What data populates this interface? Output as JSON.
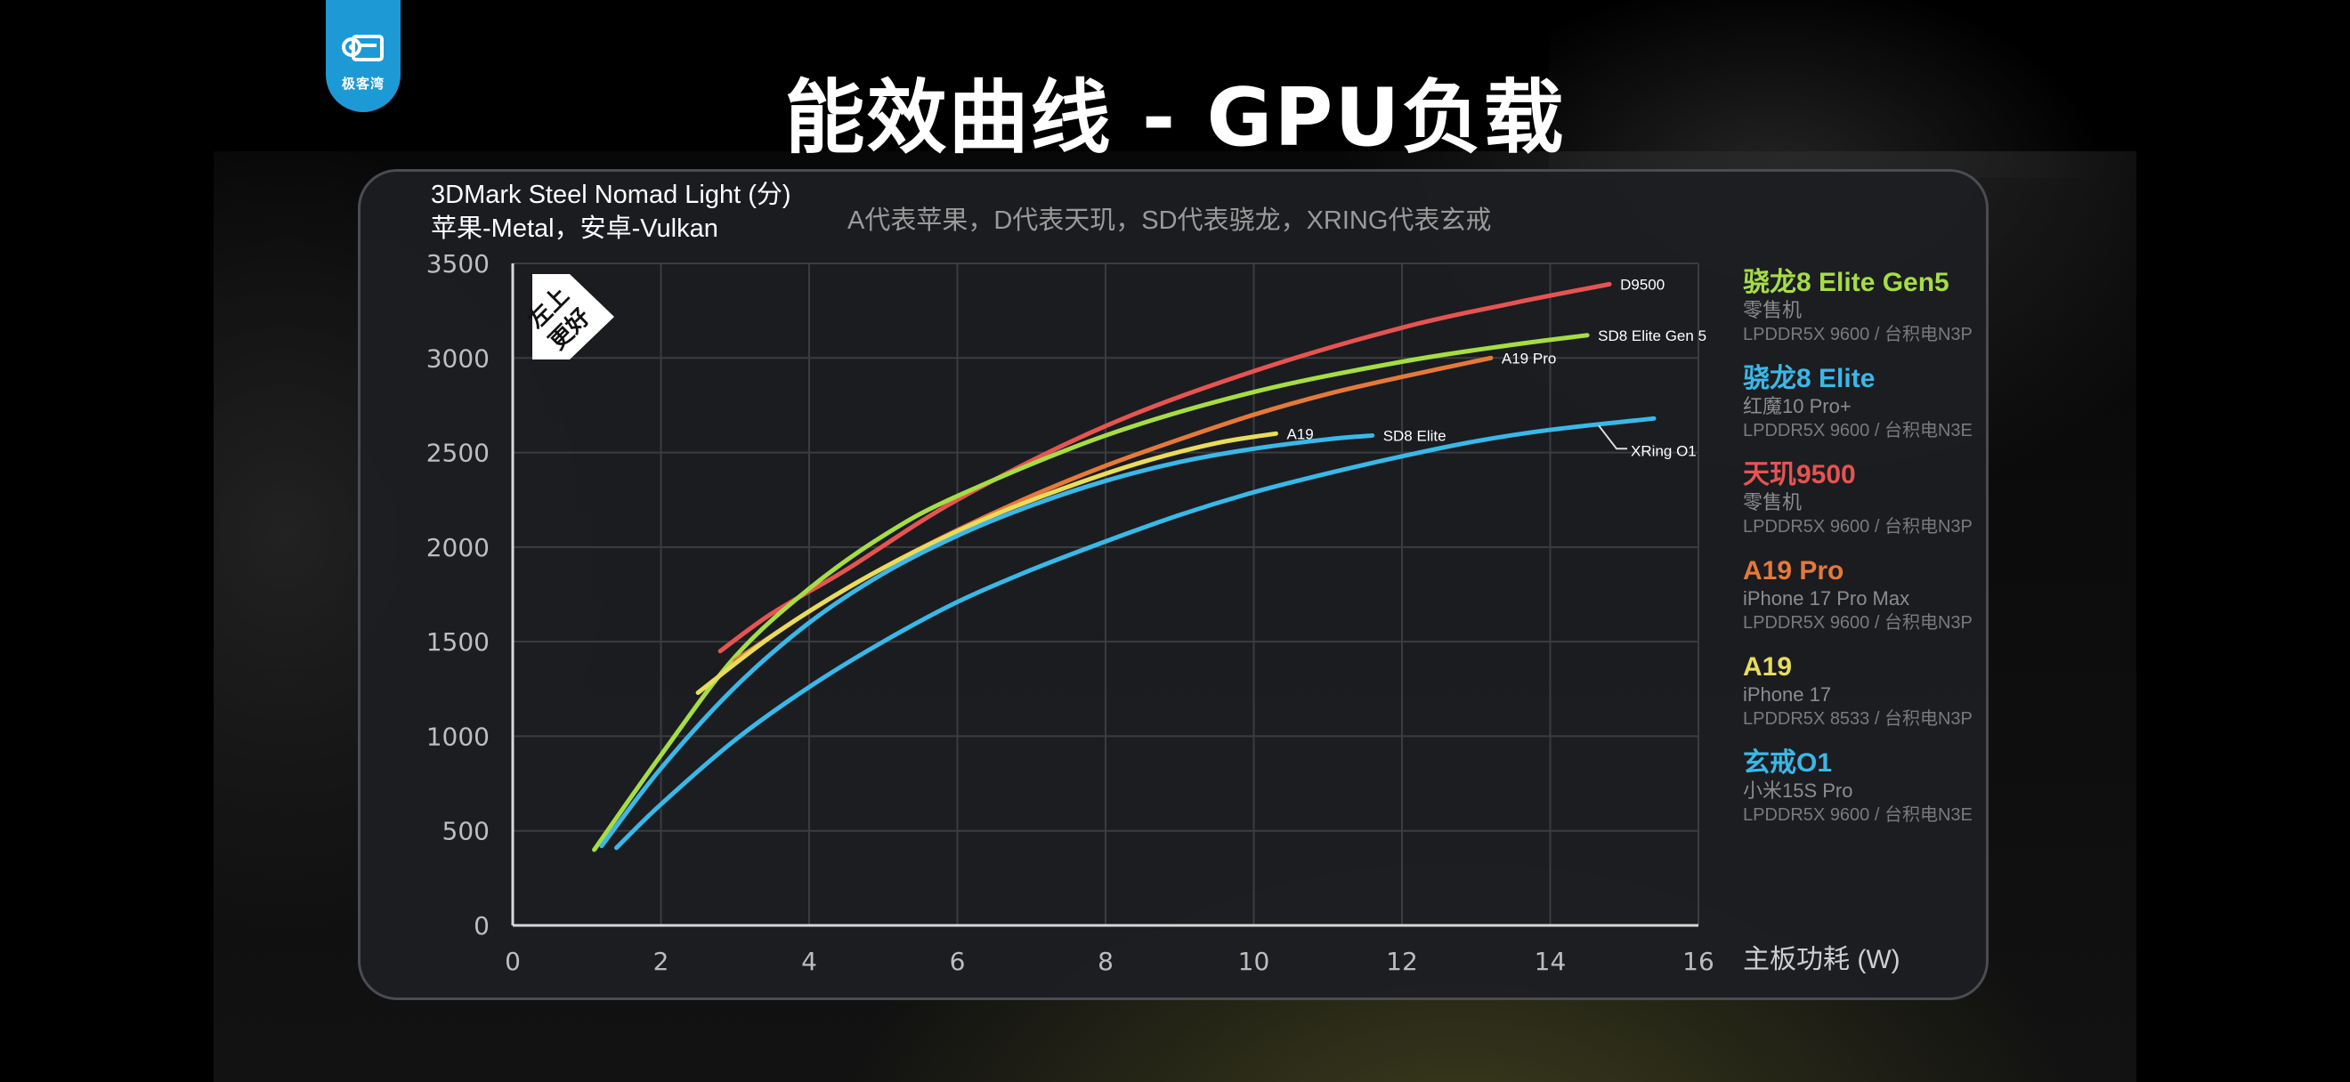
{
  "logo": {
    "text": "极客湾",
    "icon": "chip-wrench-icon"
  },
  "title": "能效曲线 - GPU负载",
  "metric_label": {
    "line1": "3DMark Steel Nomad Light (分)",
    "line2": "苹果-Metal，安卓-Vulkan"
  },
  "note": "A代表苹果，D代表天玑，SD代表骁龙，XRING代表玄戒",
  "corner_badge": {
    "line1": "左上",
    "line2": "更好"
  },
  "legend": [
    {
      "chip": "骁龙8 Elite Gen5",
      "device": "零售机",
      "spec": "LPDDR5X 9600 / 台积电N3P",
      "color": "#a6dd45"
    },
    {
      "chip": "骁龙8 Elite",
      "device": "红魔10 Pro+",
      "spec": "LPDDR5X 9600 / 台积电N3E",
      "color": "#3ab8e8"
    },
    {
      "chip": "天玑9500",
      "device": "零售机",
      "spec": "LPDDR5X 9600 / 台积电N3P",
      "color": "#e65451"
    },
    {
      "chip": "A19 Pro",
      "device": "iPhone 17 Pro Max",
      "spec": "LPDDR5X 9600 / 台积电N3P",
      "color": "#e5793a"
    },
    {
      "chip": "A19",
      "device": "iPhone 17",
      "spec": "LPDDR5X 8533 / 台积电N3P",
      "color": "#e8dc5c"
    },
    {
      "chip": "玄戒O1",
      "device": "小米15S Pro",
      "spec": "LPDDR5X 9600 / 台积电N3E",
      "color": "#3ab8e8"
    }
  ],
  "chart_data": {
    "type": "line",
    "xlabel": "主板功耗 (W)",
    "ylabel": "",
    "xlim": [
      0,
      16
    ],
    "ylim": [
      0,
      3500
    ],
    "x_ticks": [
      0,
      2,
      4,
      6,
      8,
      10,
      12,
      14,
      16
    ],
    "y_ticks": [
      0,
      500,
      1000,
      1500,
      2000,
      2500,
      3000,
      3500
    ],
    "grid": true,
    "legend_position": "right",
    "series": [
      {
        "name": "D9500",
        "color": "#e65451",
        "x": [
          2.8,
          3.5,
          4.5,
          6,
          8,
          10,
          12,
          13.5,
          14.8
        ],
        "y": [
          1450,
          1650,
          1880,
          2250,
          2640,
          2930,
          3160,
          3290,
          3390
        ]
      },
      {
        "name": "SD8 Elite Gen 5",
        "color": "#a6dd45",
        "x": [
          1.1,
          2,
          3,
          4,
          5,
          6,
          8,
          10,
          12,
          13.5,
          14.5
        ],
        "y": [
          400,
          900,
          1420,
          1780,
          2060,
          2270,
          2590,
          2820,
          2980,
          3070,
          3120
        ]
      },
      {
        "name": "A19 Pro",
        "color": "#e5793a",
        "x": [
          3,
          4,
          5,
          6,
          7,
          8,
          9,
          10,
          11,
          12,
          13.2
        ],
        "y": [
          1400,
          1660,
          1890,
          2090,
          2270,
          2430,
          2570,
          2700,
          2810,
          2900,
          3000
        ]
      },
      {
        "name": "A19",
        "color": "#e8dc5c",
        "x": [
          2.5,
          3.5,
          4.5,
          5.5,
          6.5,
          7.5,
          8.5,
          9.5,
          10.3
        ],
        "y": [
          1230,
          1530,
          1780,
          1990,
          2170,
          2320,
          2450,
          2550,
          2600
        ]
      },
      {
        "name": "SD8 Elite",
        "color": "#3ab8e8",
        "x": [
          1.2,
          2,
          3,
          4,
          5,
          6,
          7,
          8,
          9,
          10,
          11,
          11.6
        ],
        "y": [
          420,
          830,
          1260,
          1600,
          1860,
          2060,
          2220,
          2350,
          2450,
          2520,
          2570,
          2590
        ]
      },
      {
        "name": "XRing O1",
        "color": "#3ab8e8",
        "x": [
          1.4,
          2,
          3,
          4,
          5,
          6,
          7,
          8,
          9,
          10,
          11,
          12,
          13,
          14,
          15.4
        ],
        "y": [
          410,
          640,
          980,
          1260,
          1500,
          1710,
          1880,
          2030,
          2170,
          2290,
          2390,
          2480,
          2560,
          2620,
          2680
        ]
      }
    ]
  }
}
